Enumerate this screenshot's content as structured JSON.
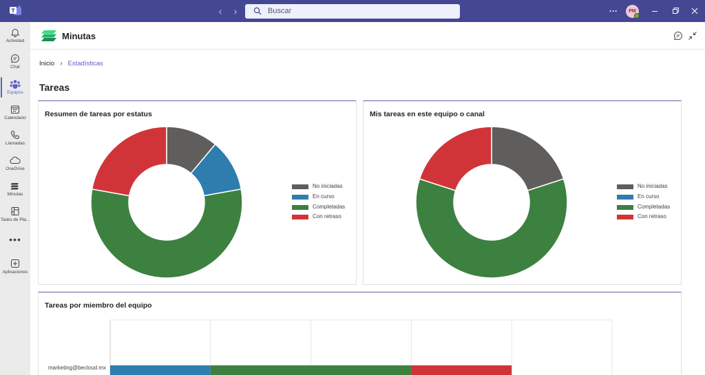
{
  "titlebar": {
    "search_placeholder": "Buscar",
    "more_label": "···",
    "avatar_initials": "PM",
    "colors": {
      "bar": "#444791"
    }
  },
  "rail": {
    "items": [
      {
        "label": "Actividad",
        "icon": "bell-icon"
      },
      {
        "label": "Chat",
        "icon": "chat-icon"
      },
      {
        "label": "Equipos",
        "icon": "teams-icon",
        "active": true
      },
      {
        "label": "Calendario",
        "icon": "calendar-icon"
      },
      {
        "label": "Llamadas",
        "icon": "phone-icon"
      },
      {
        "label": "OneDrive",
        "icon": "cloud-icon"
      },
      {
        "label": "Minutas",
        "icon": "minutas-icon"
      },
      {
        "label": "Tasks de Pla...",
        "icon": "planner-icon"
      },
      {
        "label": "Aplicaciones",
        "icon": "add-apps-icon"
      }
    ],
    "more_label": "•••"
  },
  "app": {
    "title": "Minutas",
    "breadcrumb": {
      "home": "Inicio",
      "current": "Estadísticas"
    },
    "heading": "Tareas"
  },
  "cards": {
    "status_summary": {
      "title": "Resumen de tareas por estatus"
    },
    "my_tasks": {
      "title": "Mis tareas en este equipo o canal"
    },
    "by_member": {
      "title": "Tareas por miembro del equipo"
    }
  },
  "legend": [
    {
      "label": "No iniciadas",
      "color": "#605e5c"
    },
    {
      "label": "En curso",
      "color": "#2e7daf"
    },
    {
      "label": "Completadas",
      "color": "#3d8140"
    },
    {
      "label": "Con retraso",
      "color": "#d13438"
    }
  ],
  "chart_data": [
    {
      "type": "pie",
      "subtype": "donut",
      "title": "Resumen de tareas por estatus",
      "categories": [
        "No iniciadas",
        "En curso",
        "Completadas",
        "Con retraso"
      ],
      "values": [
        1,
        1,
        5,
        2
      ],
      "colors": [
        "#605e5c",
        "#2e7daf",
        "#3d8140",
        "#d13438"
      ],
      "legend_position": "right"
    },
    {
      "type": "pie",
      "subtype": "donut",
      "title": "Mis tareas en este equipo o canal",
      "categories": [
        "No iniciadas",
        "En curso",
        "Completadas",
        "Con retraso"
      ],
      "values": [
        1,
        0,
        3,
        1
      ],
      "colors": [
        "#605e5c",
        "#2e7daf",
        "#3d8140",
        "#d13438"
      ],
      "legend_position": "right"
    },
    {
      "type": "bar",
      "orientation": "horizontal",
      "stacked": true,
      "title": "Tareas por miembro del equipo",
      "categories": [
        "marketing@becloud.mx"
      ],
      "series": [
        {
          "name": "No iniciadas",
          "values": [
            0
          ],
          "color": "#605e5c"
        },
        {
          "name": "En curso",
          "values": [
            1
          ],
          "color": "#2e7daf"
        },
        {
          "name": "Completadas",
          "values": [
            2
          ],
          "color": "#3d8140"
        },
        {
          "name": "Con retraso",
          "values": [
            1
          ],
          "color": "#d13438"
        }
      ],
      "xlim": [
        0,
        5
      ],
      "grid": true
    }
  ]
}
